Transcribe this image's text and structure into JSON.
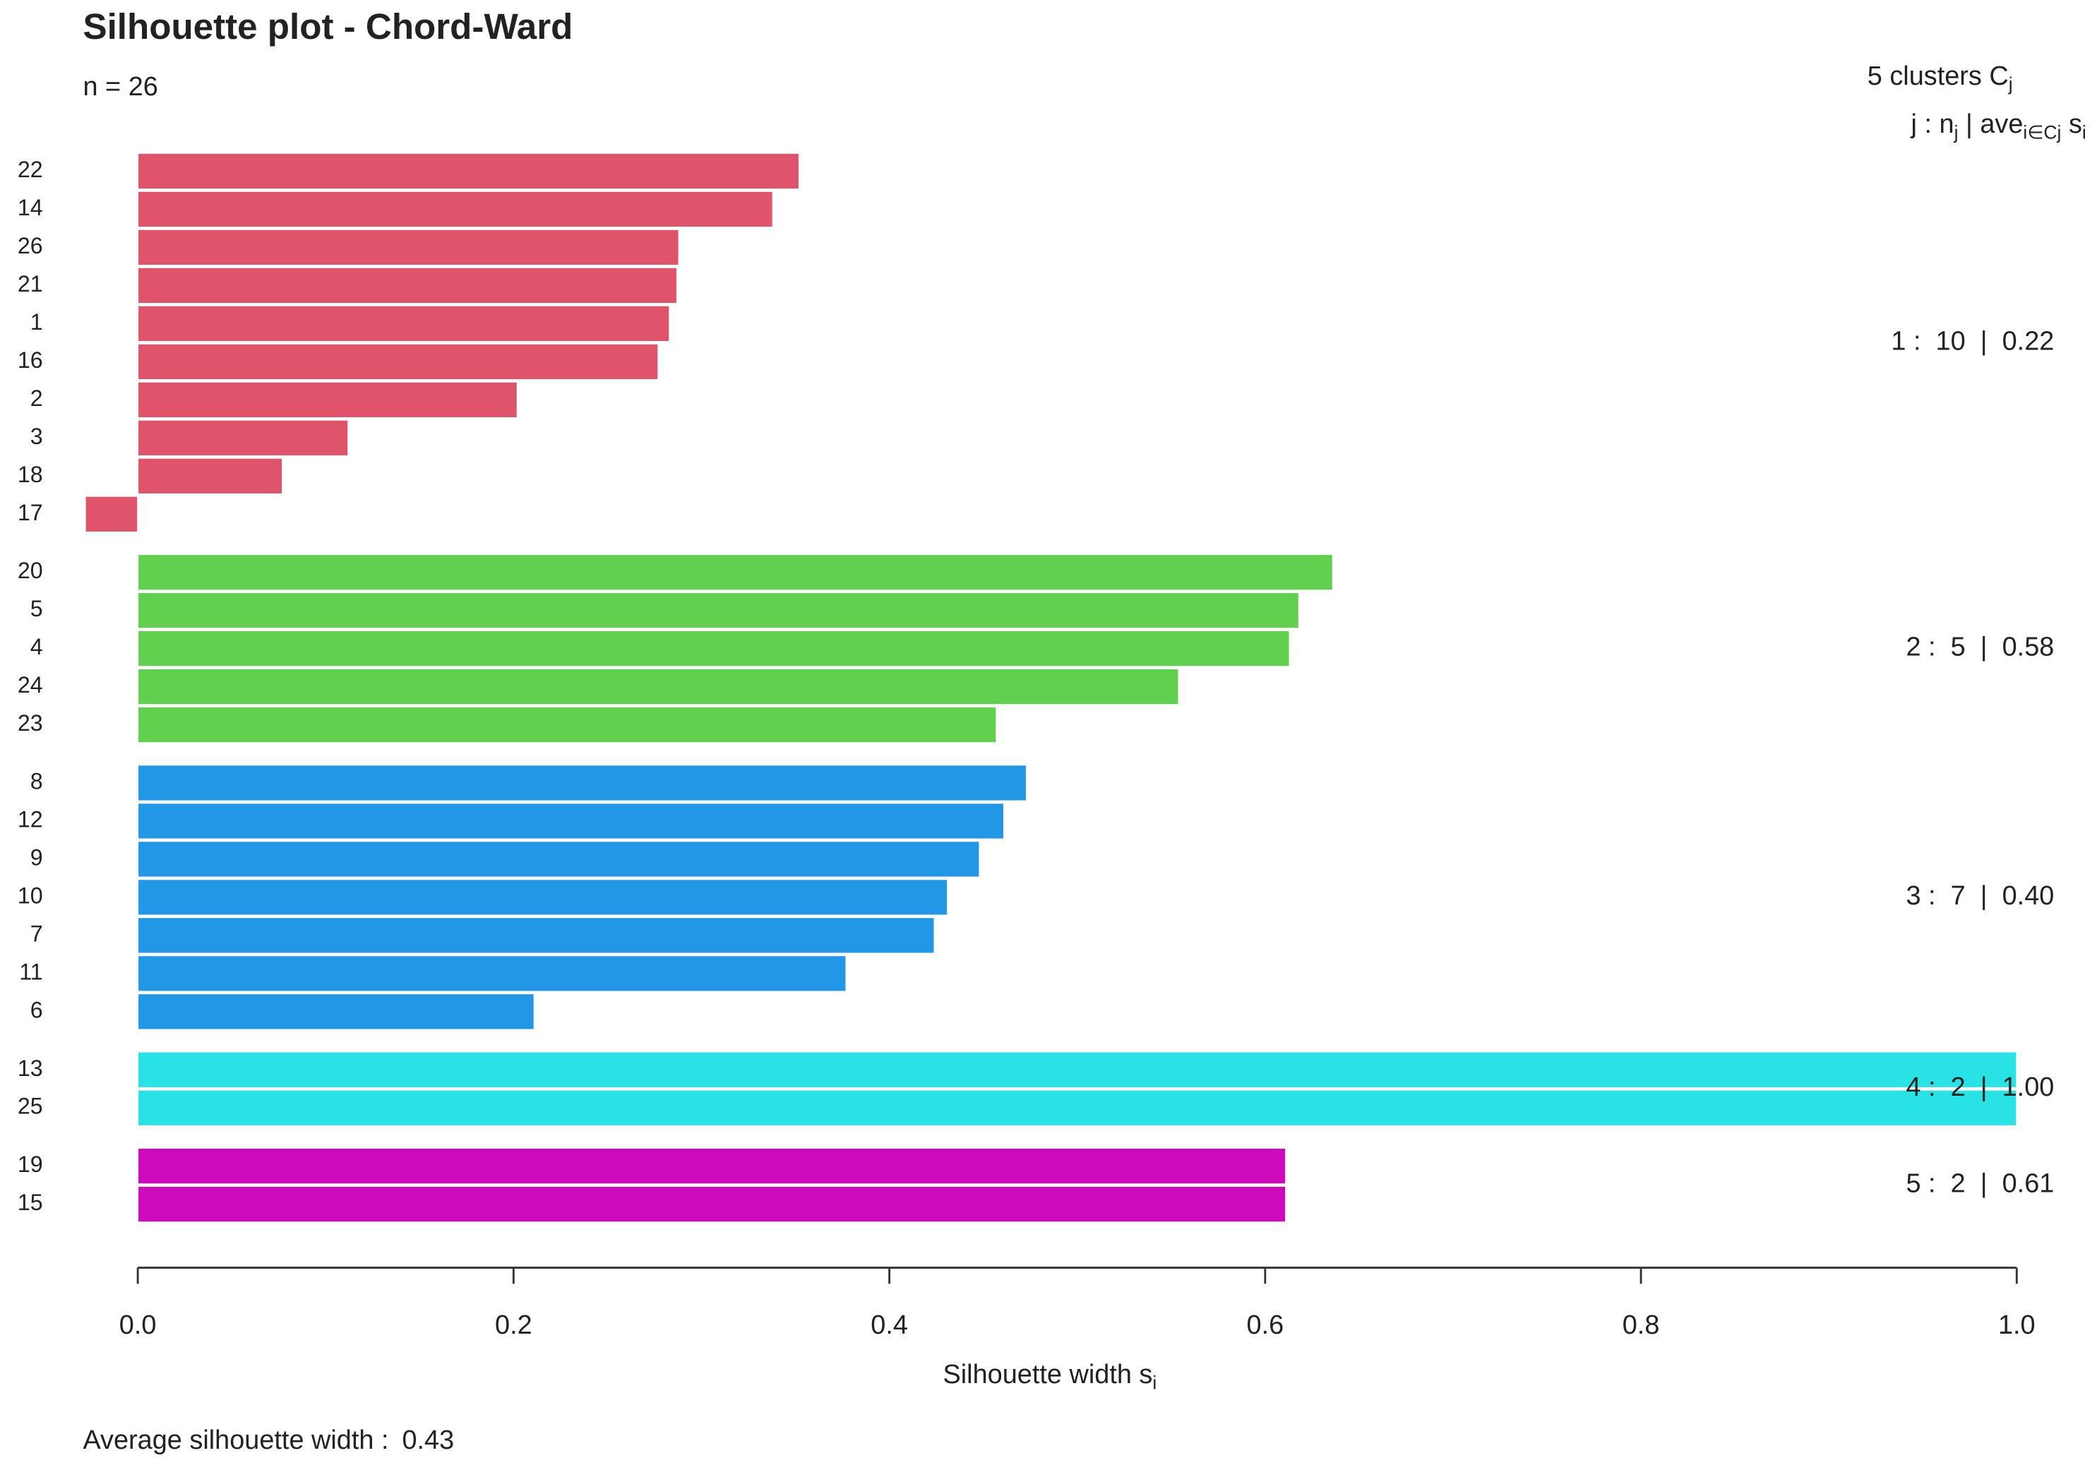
{
  "chart_data": {
    "type": "bar",
    "orientation": "horizontal",
    "title": "Silhouette plot - Chord-Ward",
    "subtitle": "n = 26",
    "legend_title": [
      "5  clusters  C",
      "j"
    ],
    "legend_subtitle": [
      "j :  n",
      "j",
      " | ave",
      "i∈Cj",
      " s",
      "i"
    ],
    "xlabel": [
      "Silhouette width s",
      "i"
    ],
    "average_label": "Average silhouette width :",
    "average": 0.43,
    "xlim": [
      0,
      1
    ],
    "xticks": [
      {
        "value": 0,
        "label": "0.0"
      },
      0.2,
      0.4,
      0.6,
      0.8,
      {
        "value": 1,
        "label": "1.0"
      }
    ],
    "grid": false,
    "clusters": [
      {
        "label": "1 :  10  |  0.22",
        "color": "#df536b",
        "categories": [
          "22",
          "14",
          "26",
          "21",
          "1",
          "16",
          "2",
          "3",
          "18",
          "17"
        ],
        "values": [
          0.352,
          0.338,
          0.288,
          0.287,
          0.283,
          0.277,
          0.202,
          0.112,
          0.077,
          -0.028
        ]
      },
      {
        "label": "2 :  5  |  0.58",
        "color": "#61d04f",
        "categories": [
          "20",
          "5",
          "4",
          "24",
          "23"
        ],
        "values": [
          0.636,
          0.618,
          0.613,
          0.554,
          0.457
        ]
      },
      {
        "label": "3 :  7  |  0.40",
        "color": "#2297e6",
        "categories": [
          "8",
          "12",
          "9",
          "10",
          "7",
          "11",
          "6"
        ],
        "values": [
          0.473,
          0.461,
          0.448,
          0.431,
          0.424,
          0.377,
          0.211
        ]
      },
      {
        "label": "4 :  2  |  1.00",
        "color": "#28e2e5",
        "categories": [
          "13",
          "25"
        ],
        "values": [
          1.0,
          1.0
        ]
      },
      {
        "label": "5 :  2  |  0.61",
        "color": "#cd0bbc",
        "categories": [
          "19",
          "15"
        ],
        "values": [
          0.611,
          0.611
        ]
      }
    ]
  }
}
